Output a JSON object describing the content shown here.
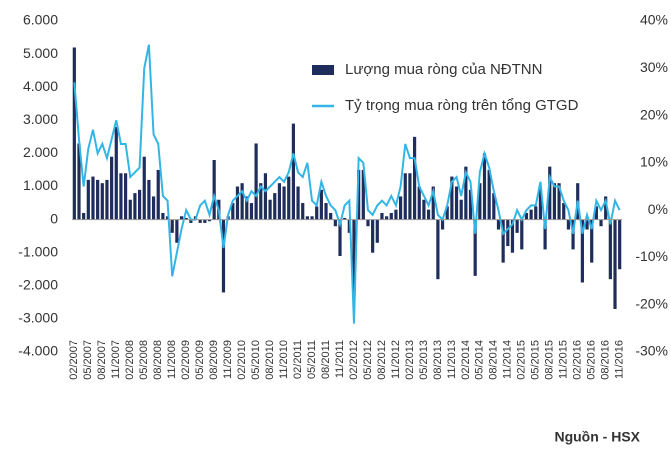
{
  "chart_data": {
    "type": "bar_line",
    "source": "Nguồn - HSX",
    "categories": [
      "02/2007",
      null,
      null,
      "05/2007",
      null,
      null,
      "08/2007",
      null,
      null,
      "11/2007",
      null,
      null,
      "02/2008",
      null,
      null,
      "05/2008",
      null,
      null,
      "08/2008",
      null,
      null,
      "11/2008",
      null,
      null,
      "02/2009",
      null,
      null,
      "05/2009",
      null,
      null,
      "08/2009",
      null,
      null,
      "11/2009",
      null,
      null,
      "02/2010",
      null,
      null,
      "05/2010",
      null,
      null,
      "08/2010",
      null,
      null,
      "11/2010",
      null,
      null,
      "02/2011",
      null,
      null,
      "05/2011",
      null,
      null,
      "08/2011",
      null,
      null,
      "11/2011",
      null,
      null,
      "02/2012",
      null,
      null,
      "05/2012",
      null,
      null,
      "08/2012",
      null,
      null,
      "11/2012",
      null,
      null,
      "02/2013",
      null,
      null,
      "05/2013",
      null,
      null,
      "08/2013",
      null,
      null,
      "11/2013",
      null,
      null,
      "02/2014",
      null,
      null,
      "05/2014",
      null,
      null,
      "08/2014",
      null,
      null,
      "11/2014",
      null,
      null,
      "02/2015",
      null,
      null,
      "05/2015",
      null,
      null,
      "08/2015",
      null,
      null,
      "11/2015",
      null,
      null,
      "02/2016",
      null,
      null,
      "05/2016",
      null,
      null,
      "08/2016",
      null,
      null,
      "11/2016"
    ],
    "series": [
      {
        "name": "Lượng mua ròng của NĐTNN",
        "color": "#1f2d5c",
        "type": "bar",
        "values": [
          5200,
          2300,
          200,
          1200,
          1300,
          1200,
          1100,
          1200,
          1900,
          2800,
          1400,
          1400,
          600,
          800,
          900,
          1900,
          1200,
          700,
          1500,
          200,
          100,
          -400,
          -700,
          100,
          50,
          -100,
          100,
          -100,
          -100,
          -50,
          1800,
          600,
          -2200,
          100,
          500,
          1000,
          1100,
          700,
          500,
          2300,
          1100,
          1400,
          600,
          800,
          1100,
          1000,
          1300,
          2900,
          1000,
          500,
          100,
          100,
          400,
          900,
          500,
          200,
          -200,
          -1100,
          50,
          -400,
          -2300,
          1500,
          1500,
          -200,
          -1000,
          -700,
          200,
          100,
          200,
          300,
          700,
          1400,
          1400,
          2500,
          1000,
          600,
          300,
          1000,
          -1800,
          -300,
          400,
          1300,
          1000,
          600,
          1600,
          900,
          -1700,
          1100,
          2000,
          1500,
          800,
          -300,
          -1300,
          -800,
          -1000,
          -400,
          -900,
          200,
          300,
          400,
          1000,
          -900,
          1600,
          1100,
          1100,
          500,
          -300,
          -900,
          1100,
          -1900,
          -300,
          -1300,
          400,
          -200,
          700,
          -1800,
          -2700,
          -1500
        ]
      },
      {
        "name": "Tỷ trọng mua ròng trên tổng GTGD",
        "color": "#33b5e5",
        "type": "line",
        "axis": "y2",
        "values": [
          27,
          15,
          5,
          13,
          17,
          12,
          14,
          11,
          15,
          19,
          14,
          14,
          7,
          8,
          9,
          30,
          35,
          16,
          14,
          3,
          2,
          -14,
          -9,
          -4,
          0,
          -2,
          -2,
          1,
          2,
          -1,
          3,
          0,
          -8,
          -1,
          2,
          3,
          4,
          2,
          4,
          3,
          5,
          4,
          5,
          6,
          7,
          6,
          8,
          12,
          8,
          7,
          10,
          2,
          1,
          6,
          3,
          1,
          0,
          -3,
          1,
          2,
          -24,
          11,
          10,
          0,
          -1,
          1,
          2,
          1,
          3,
          1,
          5,
          14,
          11,
          11,
          5,
          3,
          1,
          4,
          -1,
          -2,
          1,
          6,
          7,
          3,
          8,
          6,
          -5,
          8,
          12,
          9,
          4,
          0,
          -5,
          -4,
          -3,
          0,
          -2,
          0,
          1,
          1,
          6,
          -4,
          7,
          5,
          5,
          2,
          0,
          -5,
          2,
          -5,
          -1,
          -4,
          2,
          0,
          2,
          -3,
          2,
          0
        ]
      }
    ],
    "ylim": [
      -4000,
      6000
    ],
    "yticks": [
      {
        "value": 6000,
        "label": "6.000"
      },
      {
        "value": 5000,
        "label": "5.000"
      },
      {
        "value": 4000,
        "label": "4.000"
      },
      {
        "value": 3000,
        "label": "3.000"
      },
      {
        "value": 2000,
        "label": "2.000"
      },
      {
        "value": 1000,
        "label": "1.000"
      },
      0,
      {
        "value": -1000,
        "label": "-1.000"
      },
      {
        "value": -2000,
        "label": "-2.000"
      },
      {
        "value": -3000,
        "label": "-3.000"
      },
      {
        "value": -4000,
        "label": "-4.000"
      }
    ],
    "y2lim": [
      -30,
      40
    ],
    "y2ticks": [
      {
        "value": 40,
        "label": "40%"
      },
      {
        "value": 30,
        "label": "30%"
      },
      {
        "value": 20,
        "label": "20%"
      },
      {
        "value": 10,
        "label": "10%"
      },
      {
        "value": 0,
        "label": "0%"
      },
      {
        "value": -10,
        "label": "-10%"
      },
      {
        "value": -20,
        "label": "-20%"
      },
      {
        "value": -30,
        "label": "-30%"
      }
    ],
    "grid": false
  }
}
